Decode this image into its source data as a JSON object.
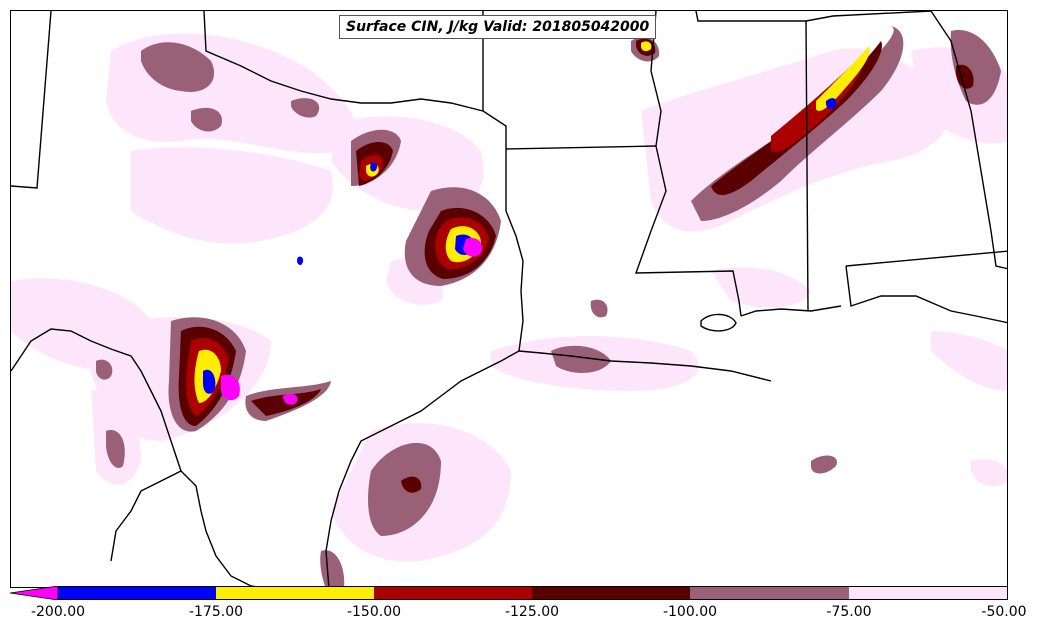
{
  "title": "Surface CIN, J/kg Valid: 201805042000",
  "colorbar": {
    "ticks": [
      "-200.00",
      "-175.00",
      "-150.00",
      "-125.00",
      "-100.00",
      "-75.00",
      "-50.00"
    ],
    "colors": [
      "#ff00ff",
      "#0000ff",
      "#ffee00",
      "#aa0000",
      "#5a0000",
      "#9a6078",
      "#fde6fb"
    ],
    "extend": "min"
  },
  "palette": {
    "very_light": "#fde6fb",
    "mauve": "#9a6078",
    "dark_red": "#5a0000",
    "red": "#aa0000",
    "yellow": "#ffee00",
    "blue": "#0000ff",
    "magenta": "#ff00ff"
  }
}
